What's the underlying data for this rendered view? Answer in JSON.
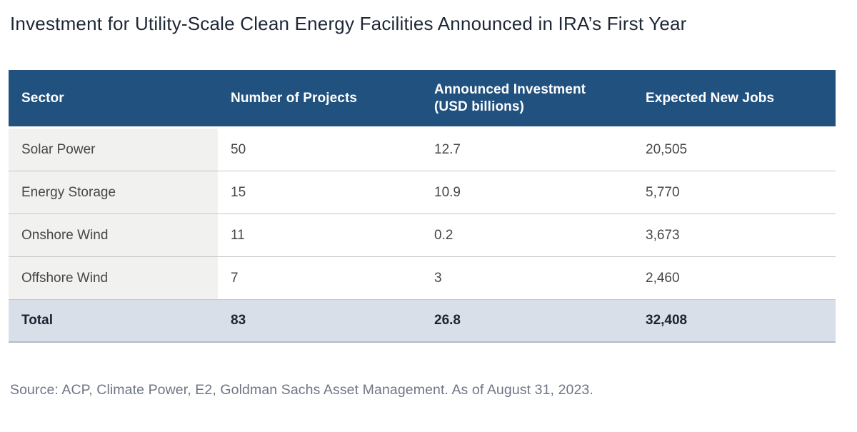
{
  "title": "Investment for Utility-Scale Clean Energy Facilities Announced in IRA’s First Year",
  "table": {
    "columns": [
      "Sector",
      "Number of Projects",
      "Announced Investment (USD billions)",
      "Expected New Jobs"
    ],
    "rows": [
      {
        "sector": "Solar Power",
        "projects": "50",
        "investment": "12.7",
        "jobs": "20,505"
      },
      {
        "sector": "Energy Storage",
        "projects": "15",
        "investment": "10.9",
        "jobs": "5,770"
      },
      {
        "sector": "Onshore Wind",
        "projects": "11",
        "investment": "0.2",
        "jobs": "3,673"
      },
      {
        "sector": "Offshore Wind",
        "projects": "7",
        "investment": "3",
        "jobs": "2,460"
      }
    ],
    "total": {
      "sector": "Total",
      "projects": "83",
      "investment": "26.8",
      "jobs": "32,408"
    }
  },
  "source": "Source: ACP, Climate Power, E2, Goldman Sachs Asset Management. As of August 31, 2023.",
  "colors": {
    "header_bg": "#21517e",
    "header_text": "#ffffff",
    "sector_column_bg": "#f1f1ef",
    "total_row_bg": "#d9dfe9",
    "row_divider": "#c6c6c6",
    "body_text": "#474747",
    "title_text": "#1e2735",
    "source_text": "#6f7585"
  },
  "chart_data": {
    "type": "table",
    "title": "Investment for Utility-Scale Clean Energy Facilities Announced in IRA’s First Year",
    "columns": [
      "Sector",
      "Number of Projects",
      "Announced Investment (USD billions)",
      "Expected New Jobs"
    ],
    "rows": [
      [
        "Solar Power",
        50,
        12.7,
        20505
      ],
      [
        "Energy Storage",
        15,
        10.9,
        5770
      ],
      [
        "Onshore Wind",
        11,
        0.2,
        3673
      ],
      [
        "Offshore Wind",
        7,
        3,
        2460
      ],
      [
        "Total",
        83,
        26.8,
        32408
      ]
    ],
    "source": "Source: ACP, Climate Power, E2, Goldman Sachs Asset Management. As of August 31, 2023."
  }
}
